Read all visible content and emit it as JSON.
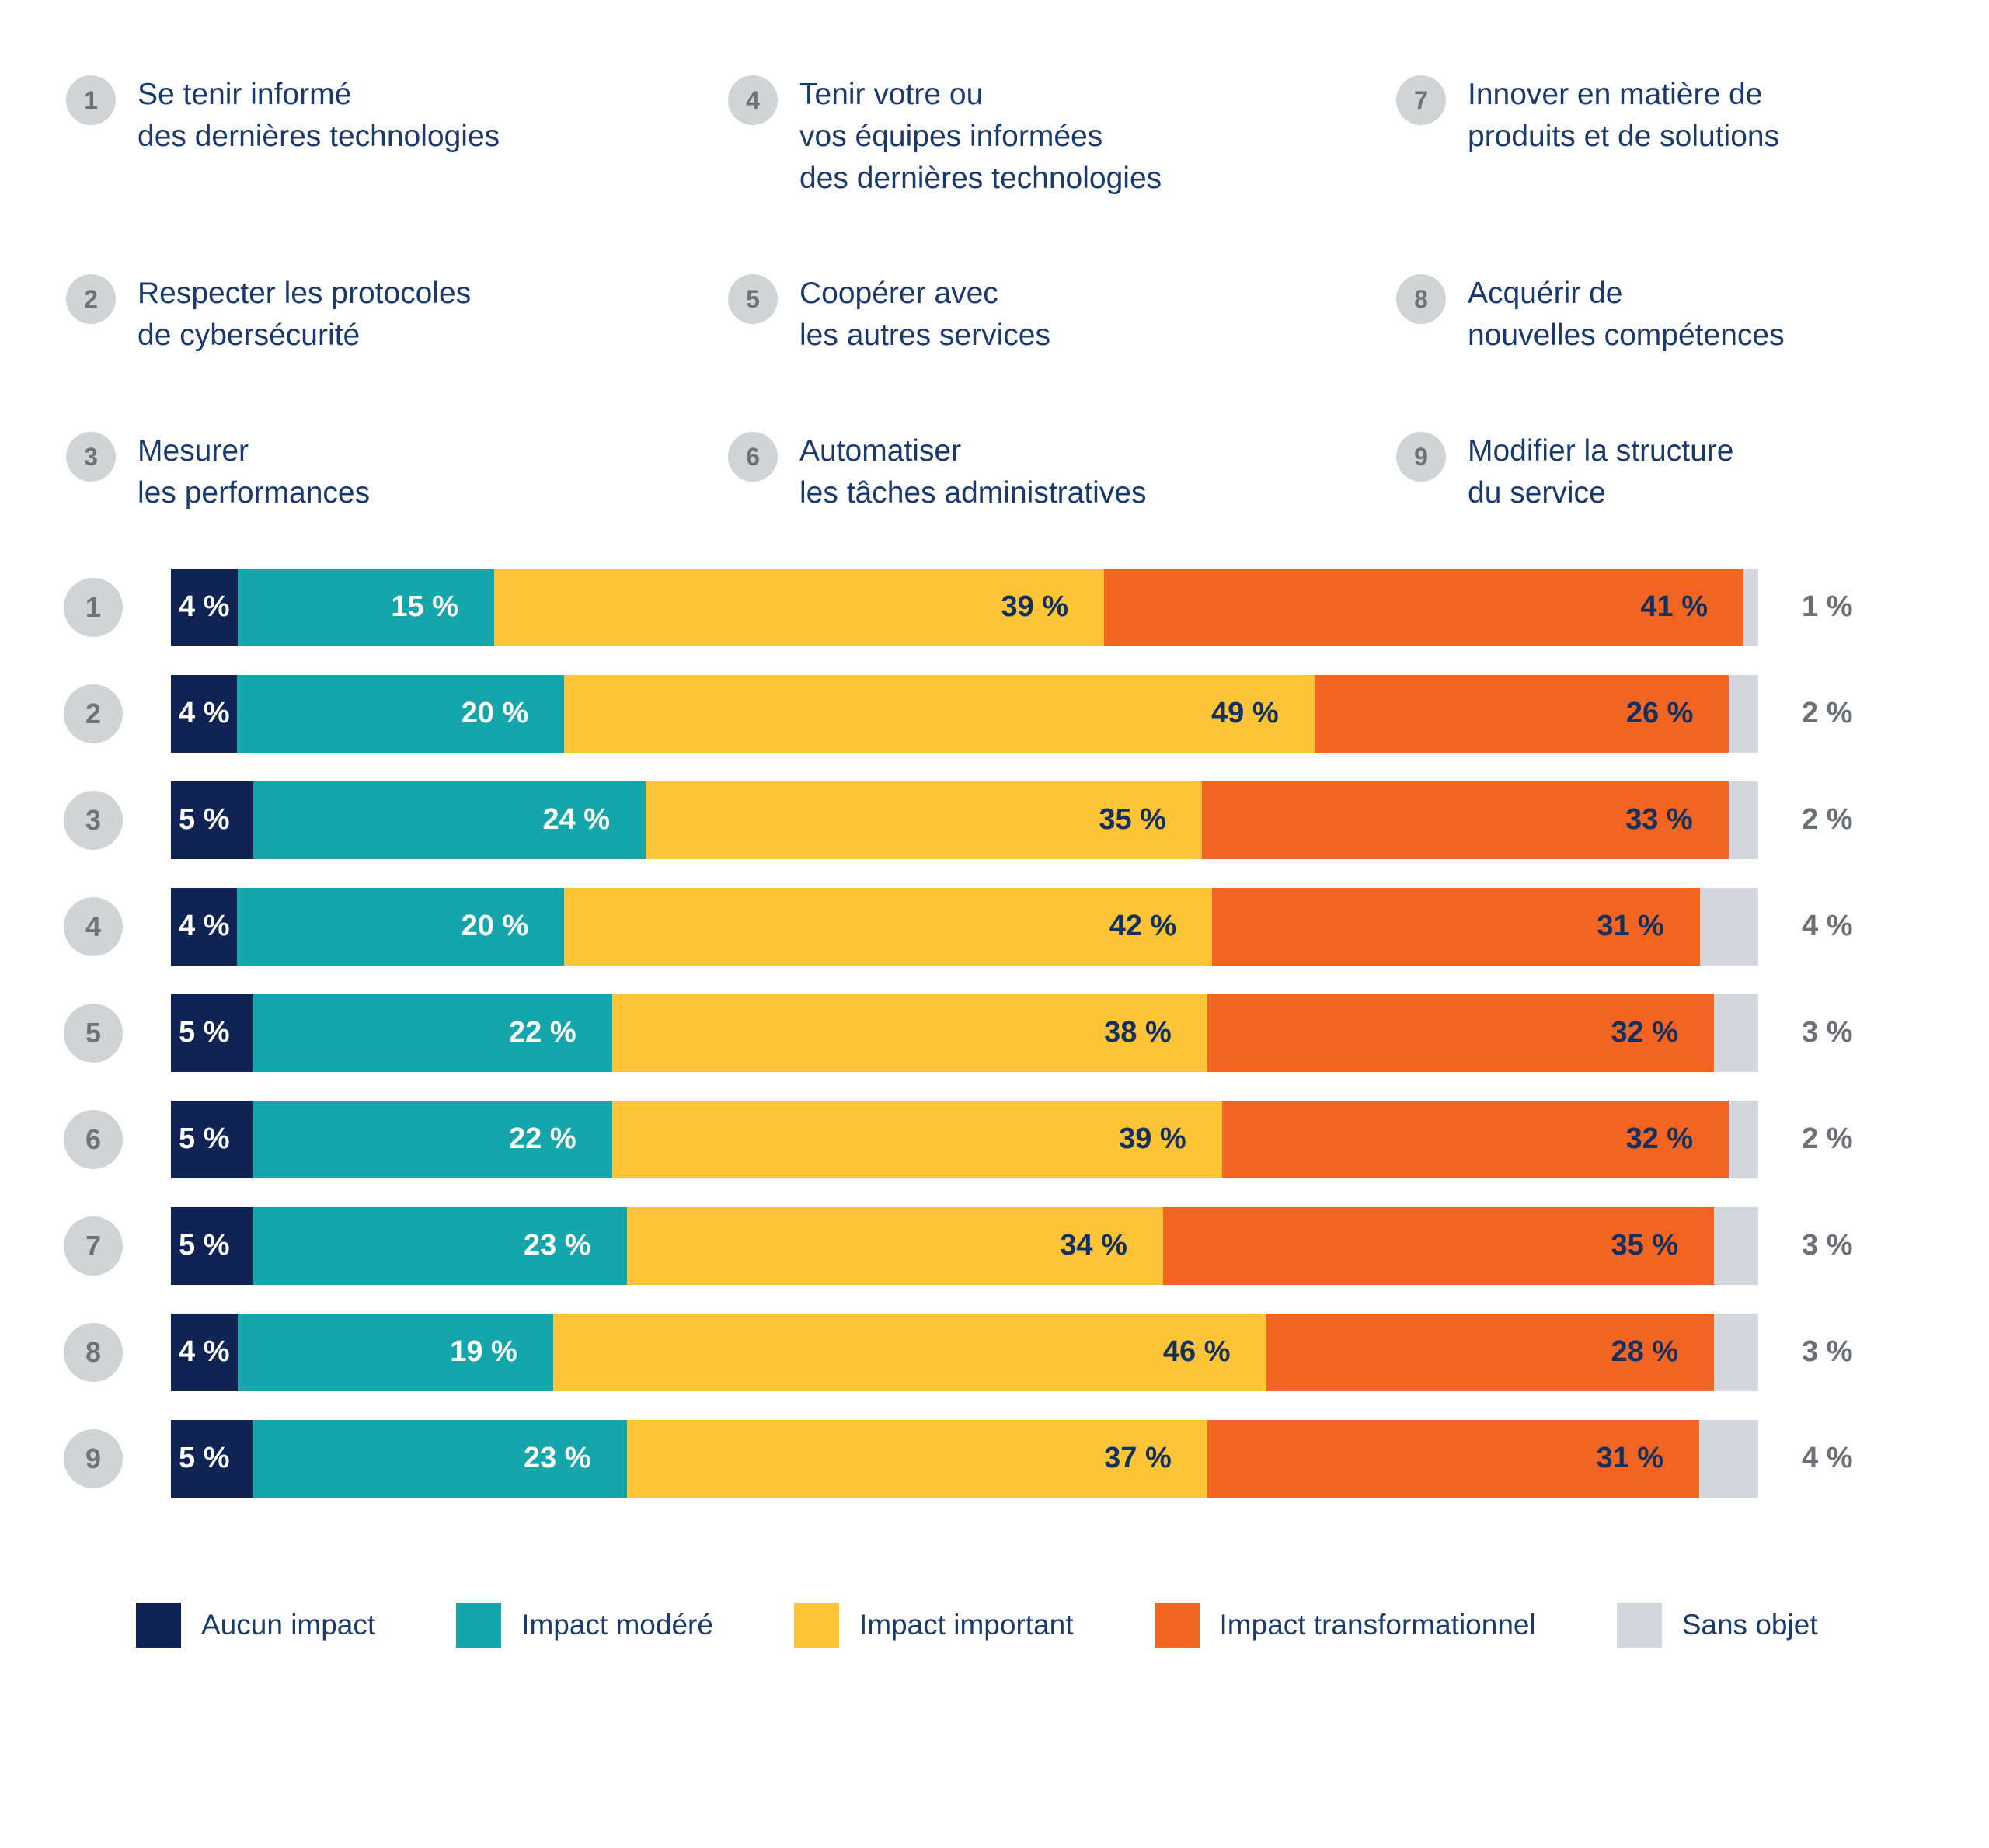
{
  "tasks": [
    {
      "num": "1",
      "label": "Se tenir informé\ndes dernières technologies"
    },
    {
      "num": "2",
      "label": "Respecter les protocoles\nde cybersécurité"
    },
    {
      "num": "3",
      "label": "Mesurer\nles performances"
    },
    {
      "num": "4",
      "label": "Tenir votre ou\nvos équipes informées\ndes dernières technologies"
    },
    {
      "num": "5",
      "label": "Coopérer avec\nles autres services"
    },
    {
      "num": "6",
      "label": "Automatiser\nles tâches administratives"
    },
    {
      "num": "7",
      "label": "Innover en matière de\nproduits et de solutions"
    },
    {
      "num": "8",
      "label": "Acquérir de\nnouvelles compétences"
    },
    {
      "num": "9",
      "label": "Modifier la structure\ndu service"
    }
  ],
  "chart_data": {
    "type": "bar",
    "subtype": "horizontal-stacked",
    "unit": "%",
    "value_label_format": "{v} %",
    "grid": false,
    "legend_position": "bottom",
    "xlim": [
      0,
      100
    ],
    "categories": [
      "1",
      "2",
      "3",
      "4",
      "5",
      "6",
      "7",
      "8",
      "9"
    ],
    "series": [
      {
        "name": "Aucun impact",
        "color": "#0F2355",
        "label_style": "light-left",
        "values": [
          4,
          4,
          5,
          4,
          5,
          5,
          5,
          4,
          5
        ]
      },
      {
        "name": "Impact modéré",
        "color": "#15A6AB",
        "label_style": "light-right",
        "values": [
          15,
          20,
          24,
          20,
          22,
          22,
          23,
          19,
          23
        ]
      },
      {
        "name": "Impact important",
        "color": "#FCC436",
        "label_style": "dark-right",
        "values": [
          39,
          49,
          35,
          42,
          38,
          39,
          34,
          46,
          37
        ]
      },
      {
        "name": "Impact transformationnel",
        "color": "#F26422",
        "label_style": "dark-right",
        "values": [
          41,
          26,
          33,
          31,
          32,
          32,
          35,
          28,
          31
        ]
      },
      {
        "name": "Sans objet",
        "color": "#D5D7DF",
        "label_style": "outside",
        "values": [
          1,
          2,
          2,
          4,
          3,
          2,
          3,
          3,
          4
        ]
      }
    ]
  },
  "colors": {
    "task_text": "#1A3A6E",
    "badge_bg": "#D2D3D5",
    "badge_text": "#6E7378",
    "outside_label_text": "#6B7077",
    "inside_label_dark": "#14305E",
    "inside_label_light": "#FFFFFF"
  }
}
